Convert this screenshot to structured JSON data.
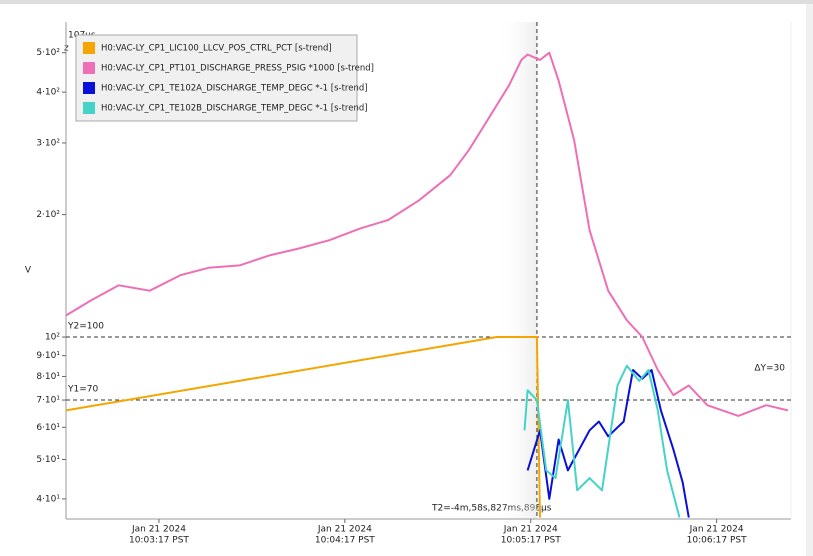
{
  "chart_data": {
    "type": "line",
    "y_label": "V",
    "time_offset_label": "107µs",
    "edge_fragment": "z",
    "log_y": true,
    "xlim": [
      "10:02:47",
      "10:06:41"
    ],
    "xticks": [
      {
        "value": "10:03:17",
        "label": [
          "Jan 21 2024",
          "10:03:17 PST"
        ]
      },
      {
        "value": "10:04:17",
        "label": [
          "Jan 21 2024",
          "10:04:17 PST"
        ]
      },
      {
        "value": "10:05:17",
        "label": [
          "Jan 21 2024",
          "10:05:17 PST"
        ]
      },
      {
        "value": "10:06:17",
        "label": [
          "Jan 21 2024",
          "10:06:17 PST"
        ]
      }
    ],
    "ylim": [
      35.7,
      595
    ],
    "yticks": [
      {
        "value": 40,
        "label": "4·10¹"
      },
      {
        "value": 50,
        "label": "5·10¹"
      },
      {
        "value": 60,
        "label": "6·10¹"
      },
      {
        "value": 70,
        "label": "7·10¹"
      },
      {
        "value": 80,
        "label": "8·10¹"
      },
      {
        "value": 90,
        "label": "9·10¹"
      },
      {
        "value": 100,
        "label": "10²"
      },
      {
        "value": 200,
        "label": "2·10²"
      },
      {
        "value": 300,
        "label": "3·10²"
      },
      {
        "value": 400,
        "label": "4·10²"
      },
      {
        "value": 500,
        "label": "5·10²"
      }
    ],
    "cursors": {
      "y1": 70,
      "y2": 100,
      "x": "10:05:19",
      "y1_label": "Y1=70",
      "y2_label": "Y2=100",
      "dy_label": "ΔY=30",
      "t2_label": "T2=-4m,58s,827ms,893µs"
    },
    "series": [
      {
        "name": "H0:VAC-LY_CP1_LIC100_LLCV_POS_CTRL_PCT [s-trend]",
        "color": "#f5a500",
        "x": [
          "10:02:47",
          "10:05:06",
          "10:05:19",
          "10:05:20"
        ],
        "values": [
          66,
          100,
          100,
          36
        ]
      },
      {
        "name": "H0:VAC-LY_CP1_PT101_DISCHARGE_PRESS_PSIG *1000 [s-trend]",
        "color": "#ee6fb5",
        "x": [
          "10:02:47",
          "10:02:55",
          "10:03:04",
          "10:03:14",
          "10:03:24",
          "10:03:33",
          "10:03:43",
          "10:03:53",
          "10:04:02",
          "10:04:12",
          "10:04:22",
          "10:04:31",
          "10:04:41",
          "10:04:51",
          "10:04:57",
          "10:05:03",
          "10:05:10",
          "10:05:14",
          "10:05:16",
          "10:05:20",
          "10:05:23",
          "10:05:26",
          "10:05:31",
          "10:05:36",
          "10:05:42",
          "10:05:48",
          "10:05:53",
          "10:05:58",
          "10:06:03",
          "10:06:08",
          "10:06:14",
          "10:06:24",
          "10:06:33",
          "10:06:40"
        ],
        "values": [
          113,
          123,
          134,
          130,
          142,
          148,
          150,
          159,
          165,
          173,
          185,
          194,
          217,
          250,
          288,
          341,
          416,
          480,
          495,
          480,
          500,
          427,
          305,
          183,
          130,
          110,
          100,
          83,
          72,
          76,
          68,
          64,
          68,
          66
        ]
      },
      {
        "name": "H0:VAC-LY_CP1_TE102A_DISCHARGE_TEMP_DEGC *-1 [s-trend]",
        "color": "#0a10d8",
        "x": [
          "10:05:16",
          "10:05:20",
          "10:05:23",
          "10:05:26",
          "10:05:29",
          "10:05:36",
          "10:05:39",
          "10:05:42",
          "10:05:47",
          "10:05:50",
          "10:05:53",
          "10:05:56",
          "10:05:59",
          "10:06:03",
          "10:06:06",
          "10:06:08"
        ],
        "values": [
          47,
          59,
          40,
          56,
          47,
          59,
          62,
          57,
          62,
          83,
          79,
          83,
          66,
          53,
          44,
          36
        ]
      },
      {
        "name": "H0:VAC-LY_CP1_TE102B_DISCHARGE_TEMP_DEGC *-1 [s-trend]",
        "color": "#45d3c8",
        "x": [
          "10:05:15",
          "10:05:16",
          "10:05:19",
          "10:05:22",
          "10:05:25",
          "10:05:29",
          "10:05:32",
          "10:05:36",
          "10:05:40",
          "10:05:45",
          "10:05:48",
          "10:05:52",
          "10:05:55",
          "10:05:58",
          "10:06:01",
          "10:06:05"
        ],
        "values": [
          59,
          74,
          70,
          47,
          45,
          70,
          42,
          45,
          42,
          76,
          85,
          78,
          83,
          66,
          47,
          36
        ]
      }
    ]
  }
}
